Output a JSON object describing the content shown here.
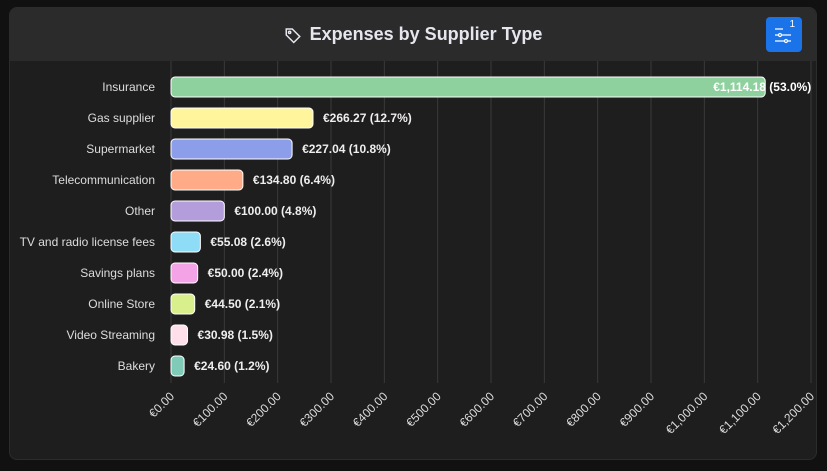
{
  "header": {
    "title": "Expenses by Supplier Type",
    "filter_count": "1"
  },
  "chart_data": {
    "type": "bar",
    "orientation": "horizontal",
    "title": "Expenses by Supplier Type",
    "categories": [
      "Insurance",
      "Gas supplier",
      "Supermarket",
      "Telecommunication",
      "Other",
      "TV and radio license fees",
      "Savings plans",
      "Online Store",
      "Video Streaming",
      "Bakery"
    ],
    "values": [
      1114.18,
      266.27,
      227.04,
      134.8,
      100.0,
      55.08,
      50.0,
      44.5,
      30.98,
      24.6
    ],
    "data_labels": [
      "€1,114.18 (53.0%)",
      "€266.27 (12.7%)",
      "€227.04 (10.8%)",
      "€134.80 (6.4%)",
      "€100.00 (4.8%)",
      "€55.08 (2.6%)",
      "€50.00 (2.4%)",
      "€44.50 (2.1%)",
      "€30.98 (1.5%)",
      "€24.60 (1.2%)"
    ],
    "colors": [
      "#8fd19e",
      "#fff59d",
      "#8c9eea",
      "#ffab88",
      "#b39ddb",
      "#8fdcf7",
      "#f4a3e6",
      "#d9ef8b",
      "#ffe0ea",
      "#7fcbb8"
    ],
    "xlim": [
      0,
      1200
    ],
    "xticks": [
      0,
      100,
      200,
      300,
      400,
      500,
      600,
      700,
      800,
      900,
      1000,
      1100,
      1200
    ],
    "xtick_labels": [
      "€0.00",
      "€100.00",
      "€200.00",
      "€300.00",
      "€400.00",
      "€500.00",
      "€600.00",
      "€700.00",
      "€800.00",
      "€900.00",
      "€1,000.00",
      "€1,100.00",
      "€1,200.00"
    ],
    "grid": true
  }
}
